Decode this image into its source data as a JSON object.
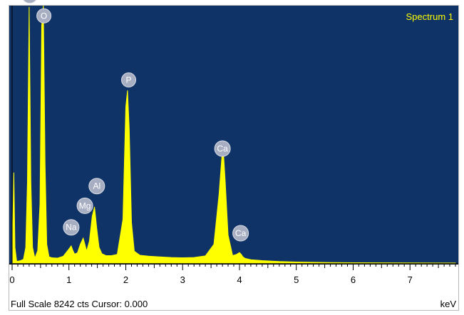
{
  "chart_data": {
    "type": "area",
    "series_label": "Spectrum 1",
    "xlabel": "keV",
    "xlim": [
      -0.05,
      7.85
    ],
    "ylim": [
      0,
      8242
    ],
    "x_ticks": [
      0,
      1,
      2,
      3,
      4,
      5,
      6,
      7
    ],
    "footer": "Full Scale 8242 cts Cursor: 0.000",
    "grid": false,
    "colors": {
      "background": "#0f3366",
      "spectrum": "#ffff00",
      "series_label": "#ffff00"
    },
    "spectrum": {
      "x": [
        0.0,
        0.03,
        0.05,
        0.08,
        0.1,
        0.15,
        0.2,
        0.24,
        0.27,
        0.3,
        0.33,
        0.36,
        0.4,
        0.45,
        0.49,
        0.52,
        0.55,
        0.58,
        0.61,
        0.65,
        0.7,
        0.8,
        0.9,
        1.0,
        1.04,
        1.07,
        1.1,
        1.15,
        1.2,
        1.25,
        1.28,
        1.31,
        1.36,
        1.41,
        1.45,
        1.49,
        1.53,
        1.58,
        1.65,
        1.75,
        1.85,
        1.95,
        2.0,
        2.03,
        2.06,
        2.1,
        2.15,
        2.25,
        2.4,
        2.6,
        2.8,
        3.0,
        3.2,
        3.4,
        3.55,
        3.64,
        3.69,
        3.72,
        3.75,
        3.8,
        3.88,
        3.95,
        4.0,
        4.03,
        4.06,
        4.1,
        4.2,
        4.4,
        4.7,
        5.0,
        5.3,
        5.6,
        6.0,
        6.5,
        7.0,
        7.5,
        7.8
      ],
      "y": [
        30,
        2900,
        500,
        60,
        60,
        80,
        120,
        500,
        2600,
        8200,
        2600,
        500,
        160,
        400,
        1900,
        7600,
        8242,
        3200,
        600,
        200,
        170,
        160,
        220,
        450,
        550,
        400,
        290,
        330,
        600,
        800,
        600,
        380,
        700,
        1500,
        1800,
        1100,
        500,
        300,
        240,
        240,
        280,
        1400,
        5000,
        5530,
        4300,
        1300,
        380,
        250,
        220,
        200,
        180,
        170,
        180,
        230,
        600,
        2200,
        3400,
        3500,
        2600,
        900,
        240,
        280,
        340,
        280,
        200,
        150,
        110,
        80,
        50,
        35,
        25,
        18,
        12,
        8,
        5,
        3,
        2
      ]
    },
    "peak_labels": [
      {
        "element": "Ca",
        "x": 0.31,
        "y": 8530
      },
      {
        "element": "O",
        "x": 0.56,
        "y": 7870
      },
      {
        "element": "Na",
        "x": 1.04,
        "y": 1100
      },
      {
        "element": "Mg",
        "x": 1.28,
        "y": 1790
      },
      {
        "element": "Al",
        "x": 1.49,
        "y": 2420
      },
      {
        "element": "P",
        "x": 2.05,
        "y": 5820
      },
      {
        "element": "Ca",
        "x": 3.7,
        "y": 3620
      },
      {
        "element": "Ca",
        "x": 4.02,
        "y": 910
      }
    ]
  }
}
